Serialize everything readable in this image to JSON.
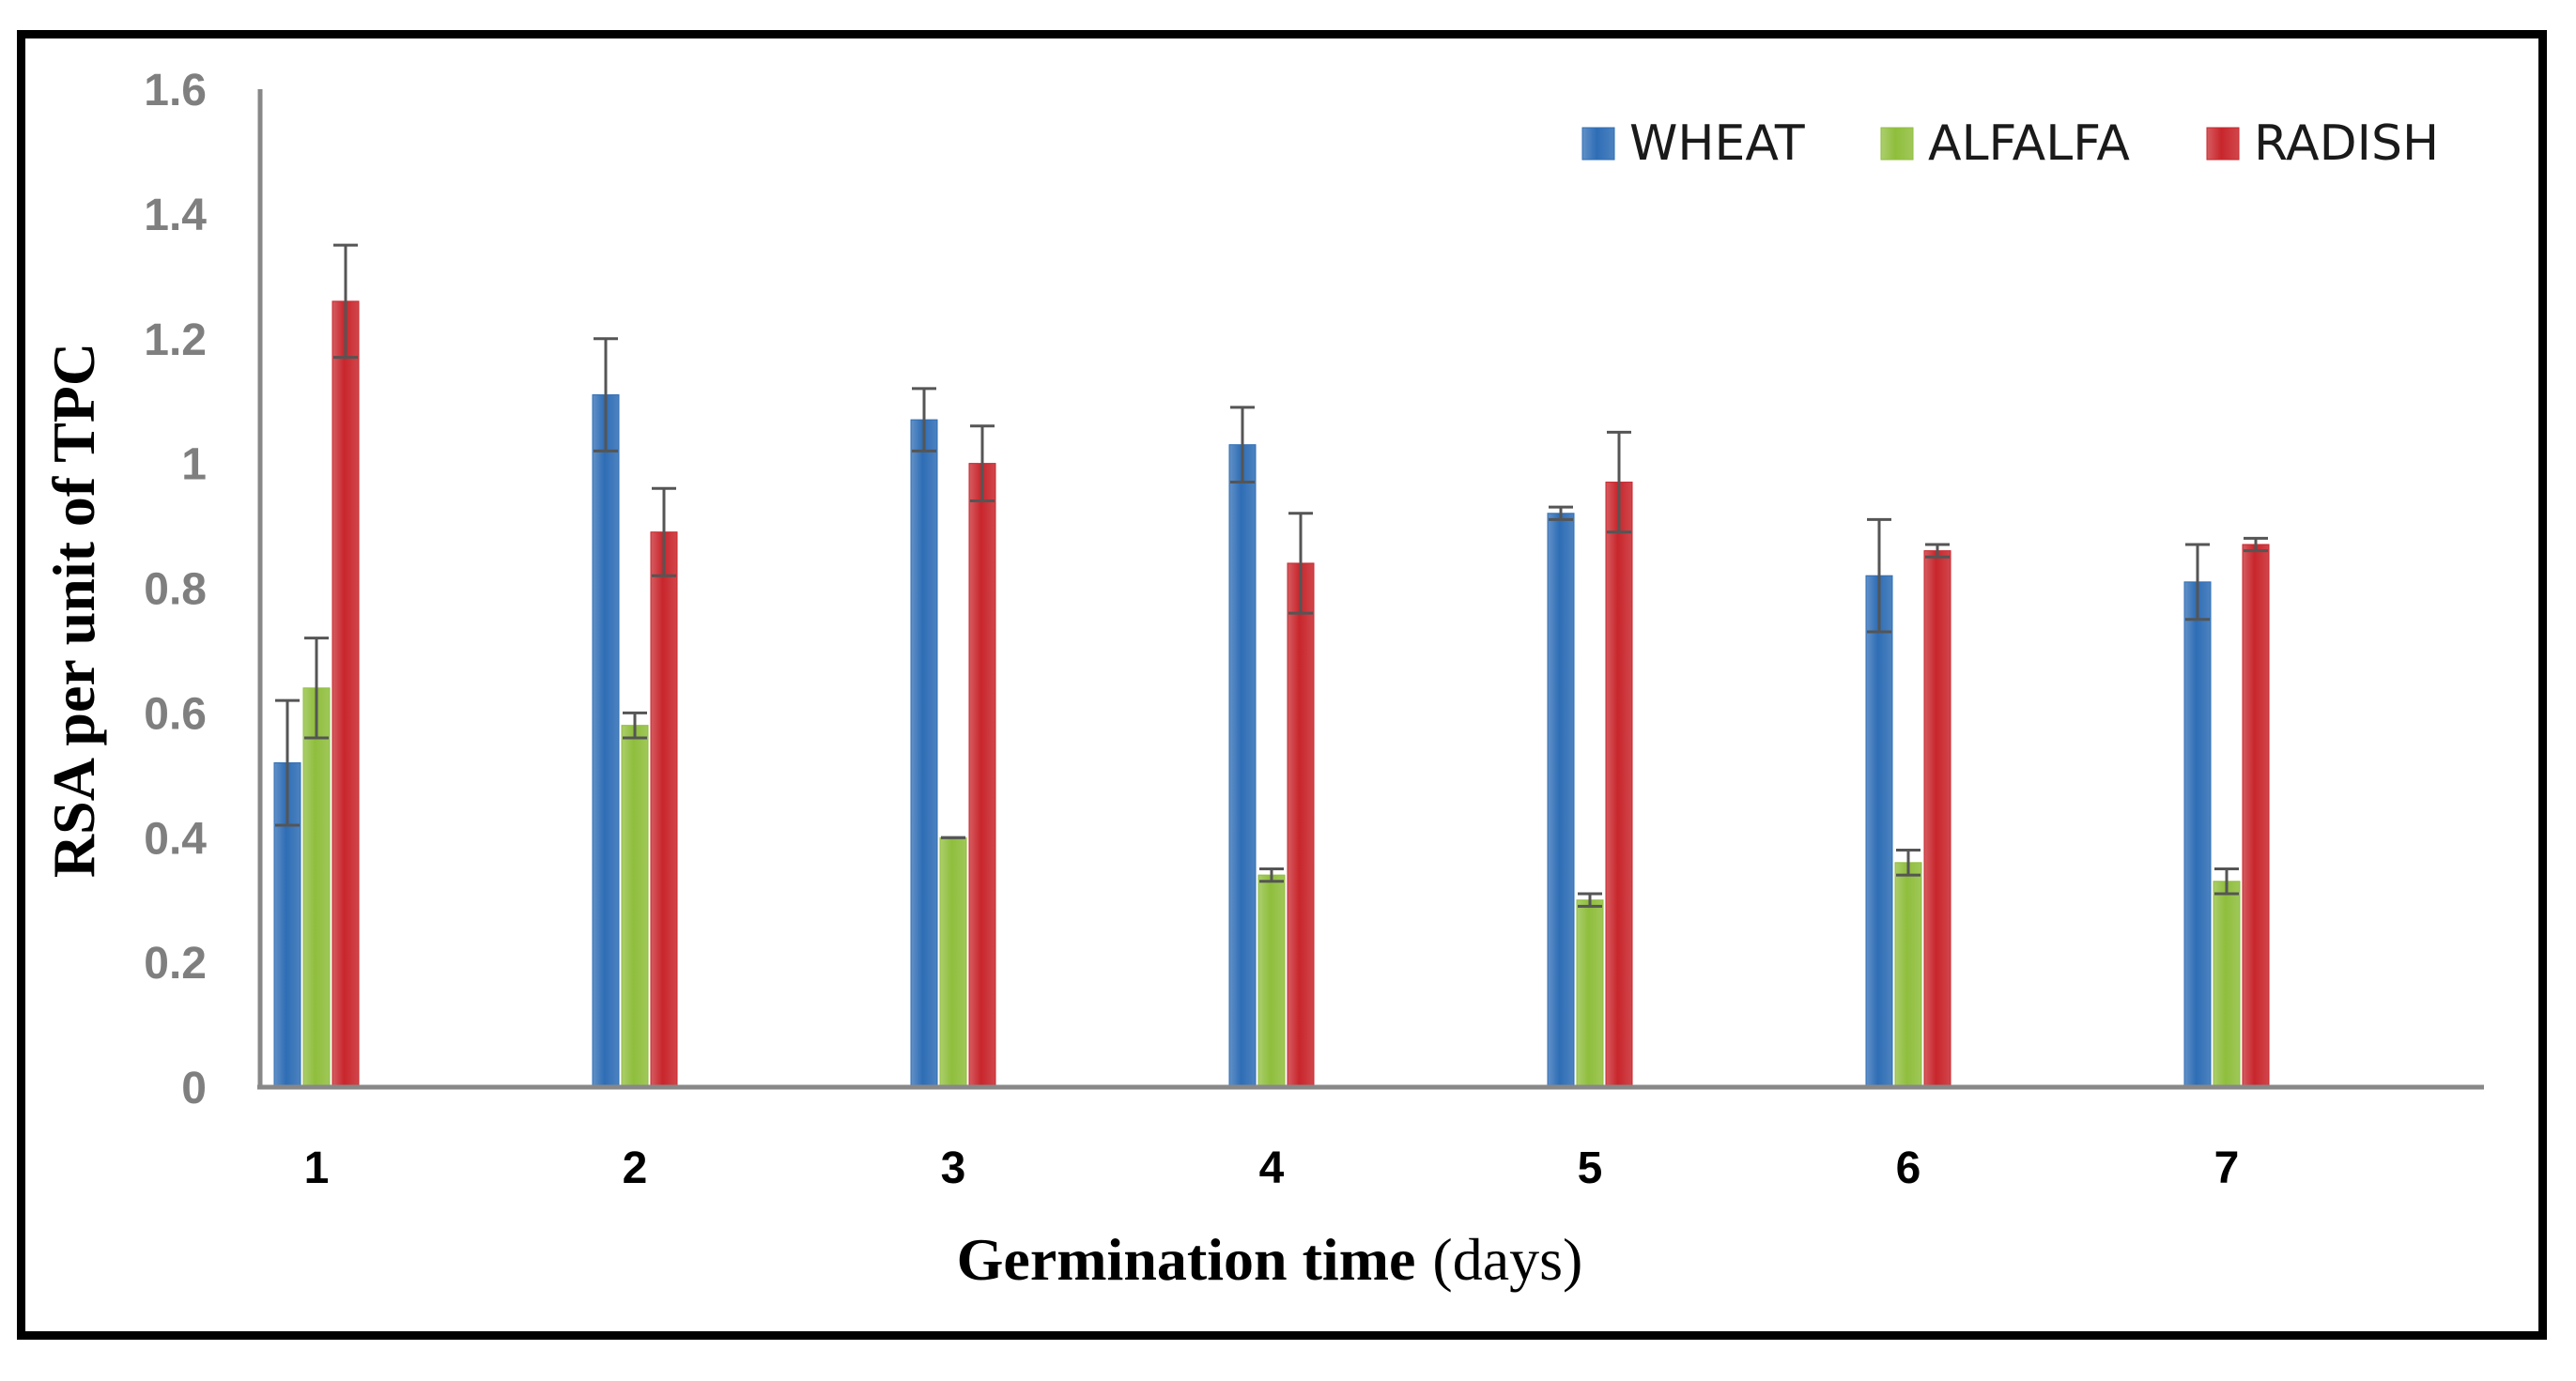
{
  "chart_data": {
    "type": "bar",
    "title": "",
    "xlabel": "Germination time",
    "xlabel_unit": "(days)",
    "ylabel": "RSA per unit of TPC",
    "ylim": [
      0,
      1.6
    ],
    "yticks": [
      "0",
      "0.2",
      "0.4",
      "0.6",
      "0.8",
      "1",
      "1.2",
      "1.4",
      "1.6"
    ],
    "categories": [
      "1",
      "2",
      "3",
      "4",
      "5",
      "6",
      "7"
    ],
    "series": [
      {
        "name": "WHEAT",
        "color": "#2e6db5",
        "values": [
          0.52,
          1.11,
          1.07,
          1.03,
          0.92,
          0.82,
          0.81
        ],
        "errors": [
          0.1,
          0.09,
          0.05,
          0.06,
          0.01,
          0.09,
          0.06
        ]
      },
      {
        "name": "ALFALFA",
        "color": "#8fbe3c",
        "values": [
          0.64,
          0.58,
          0.4,
          0.34,
          0.3,
          0.36,
          0.33
        ],
        "errors": [
          0.08,
          0.02,
          0.0,
          0.01,
          0.01,
          0.02,
          0.02
        ]
      },
      {
        "name": "RADISH",
        "color": "#c8262c",
        "values": [
          1.26,
          0.89,
          1.0,
          0.84,
          0.97,
          0.86,
          0.87
        ],
        "errors": [
          0.09,
          0.07,
          0.06,
          0.08,
          0.08,
          0.01,
          0.01
        ]
      }
    ],
    "legend_position": "top-right",
    "grid": false
  }
}
